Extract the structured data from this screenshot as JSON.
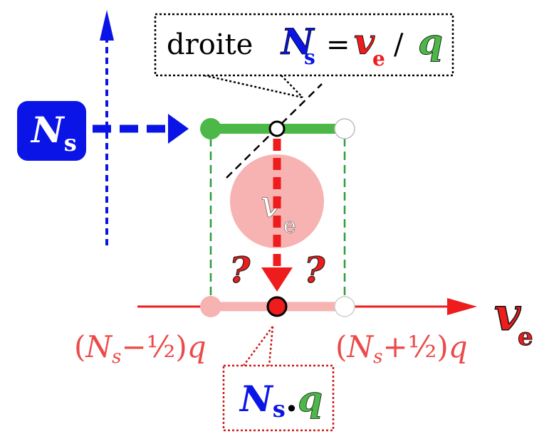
{
  "colors": {
    "blue": "#0a14e6",
    "green": "#4cb848",
    "red": "#ee1c1c",
    "light_red": "#f7b2b2",
    "text_red": "#ec4a4a",
    "black": "#000000"
  },
  "top_callout": {
    "word": "droite",
    "ns_main": "N",
    "ns_sub": "s",
    "equals": "=",
    "ve_main": "v",
    "ve_sub": "e",
    "slash": "/",
    "q": "q"
  },
  "ns_box": {
    "main": "N",
    "sub": "s"
  },
  "circle_label": {
    "main": "v",
    "sub": "e"
  },
  "question_marks": [
    "?",
    "?"
  ],
  "axis_label": {
    "main": "v",
    "sub": "e"
  },
  "bound_left": {
    "open": "(",
    "n": "N",
    "sub": "s",
    "rest": "−½)",
    "q": "q"
  },
  "bound_right": {
    "open": "(",
    "n": "N",
    "sub": "s",
    "rest": "+½)",
    "q": "q"
  },
  "bottom_callout": {
    "n": "N",
    "sub": "s",
    "dot": ".",
    "q": "q"
  }
}
